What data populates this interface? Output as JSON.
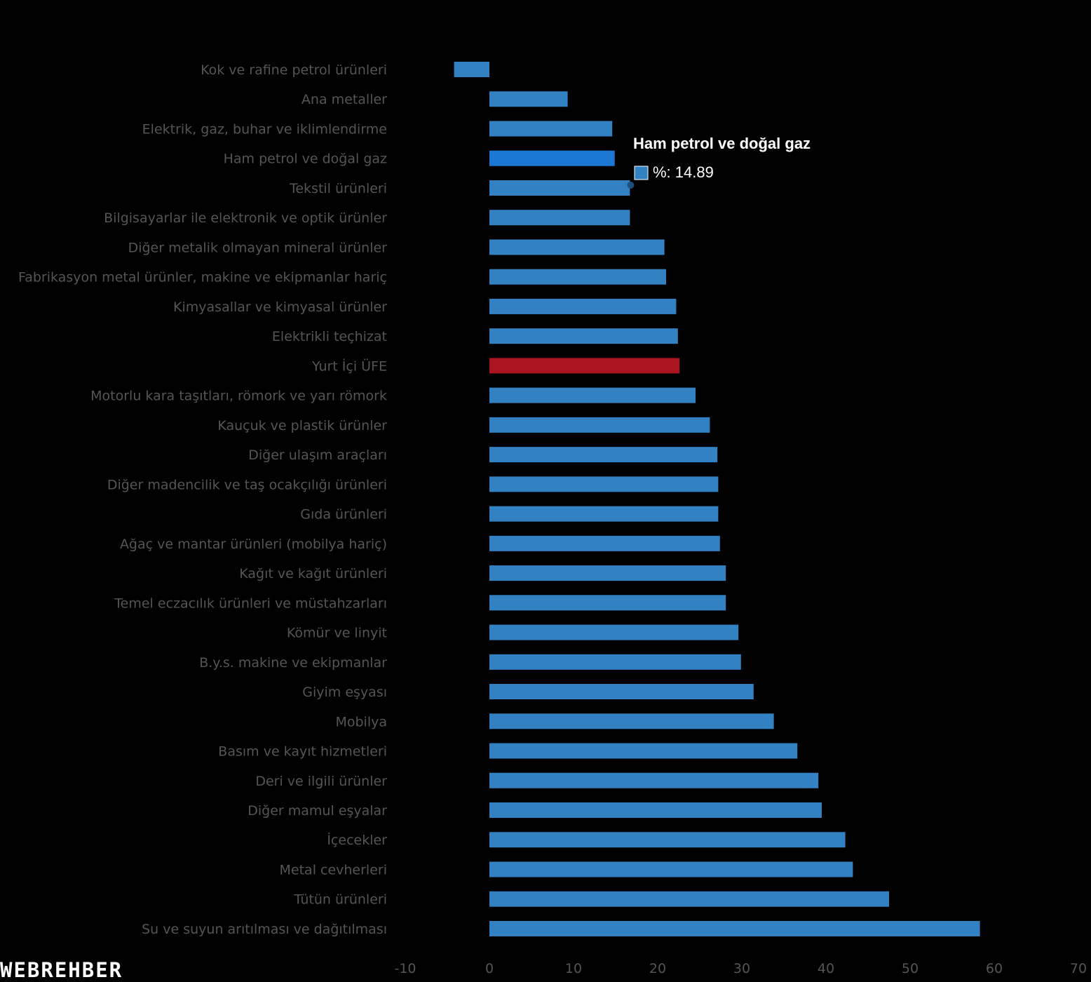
{
  "chart_data": {
    "type": "bar",
    "orientation": "horizontal",
    "categories": [
      "Kok ve rafine petrol ürünleri",
      "Ana metaller",
      "Elektrik, gaz, buhar ve iklimlendirme",
      "Ham petrol ve doğal gaz",
      "Tekstil ürünleri",
      "Bilgisayarlar ile elektronik ve optik ürünler",
      "Diğer metalik olmayan mineral ürünler",
      "Fabrikasyon metal ürünler, makine ve ekipmanlar hariç",
      "Kimyasallar ve kimyasal ürünler",
      "Elektrikli teçhizat",
      "Yurt İçi ÜFE",
      "Motorlu kara taşıtları, römork ve yarı römork",
      "Kauçuk ve plastik ürünler",
      "Diğer ulaşım araçları",
      "Diğer madencilik ve taş ocakçılığı ürünleri",
      "Gıda ürünleri",
      "Ağaç ve mantar ürünleri (mobilya hariç)",
      "Kağıt ve kağıt ürünleri",
      "Temel eczacılık ürünleri ve müstahzarları",
      "Kömür ve linyit",
      "B.y.s. makine ve ekipmanlar",
      "Giyim eşyası",
      "Mobilya",
      "Basım ve kayıt hizmetleri",
      "Deri ve ilgili ürünler",
      "Diğer mamul eşyalar",
      "İçecekler",
      "Metal cevherleri",
      "Tütün ürünleri",
      "Su ve suyun arıtılması ve dağıtılması"
    ],
    "values": [
      -4.2,
      9.3,
      14.6,
      14.89,
      16.7,
      16.7,
      20.8,
      21.0,
      22.2,
      22.4,
      22.6,
      24.5,
      26.2,
      27.1,
      27.2,
      27.2,
      27.4,
      28.1,
      28.1,
      29.6,
      29.9,
      31.4,
      33.8,
      36.6,
      39.1,
      39.5,
      42.3,
      43.2,
      47.5,
      58.3
    ],
    "highlight_index": 10,
    "hover_index": 3,
    "xlim": [
      -10,
      70
    ],
    "xticks": [
      -10,
      0,
      10,
      20,
      30,
      40,
      50,
      60,
      70
    ],
    "title": "",
    "xlabel": "",
    "ylabel": "",
    "grid": false,
    "colors": {
      "bar": "#3282c3",
      "highlight": "#ab1522",
      "hover": "#1a78d2",
      "label": "#555555",
      "background": "#000000"
    }
  },
  "tooltip": {
    "title": "Ham petrol ve doğal gaz",
    "value_text": "%: 14.89"
  },
  "logo": "WEBREHBER"
}
